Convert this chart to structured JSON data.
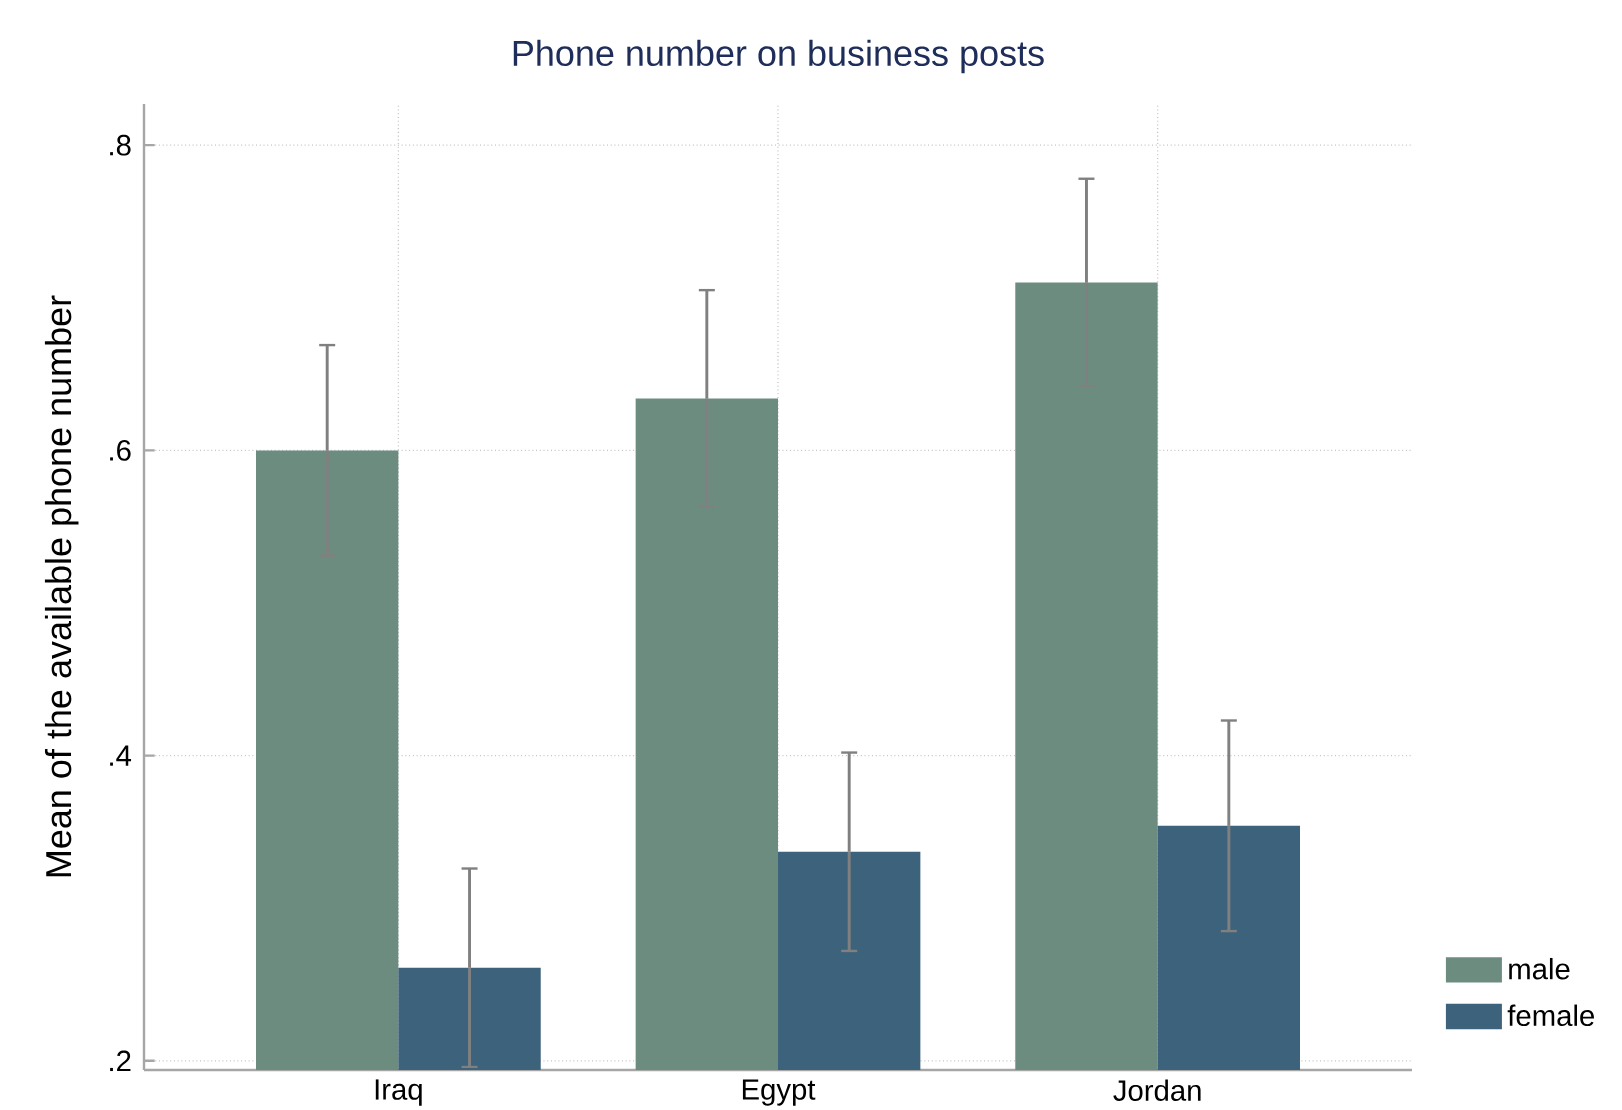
{
  "chart_data": {
    "type": "bar",
    "title": "Phone number on business posts",
    "ylabel": "Mean of the available phone number",
    "categories": [
      "Iraq",
      "Egypt",
      "Jordan"
    ],
    "series": [
      {
        "name": "male",
        "color": "#6d8c80",
        "values": [
          0.6,
          0.634,
          0.71
        ],
        "errors": [
          0.069,
          0.071,
          0.068
        ]
      },
      {
        "name": "female",
        "color": "#3d627c",
        "values": [
          0.261,
          0.337,
          0.354
        ],
        "errors": [
          0.065,
          0.065,
          0.069
        ]
      }
    ],
    "ylim": [
      0.194,
      0.827
    ],
    "yticks": [
      {
        "value": 0.2,
        "label": ".2"
      },
      {
        "value": 0.4,
        "label": ".4"
      },
      {
        "value": 0.6,
        "label": ".6"
      },
      {
        "value": 0.8,
        "label": ".8"
      }
    ],
    "grid": true,
    "legend": "bottom right"
  }
}
